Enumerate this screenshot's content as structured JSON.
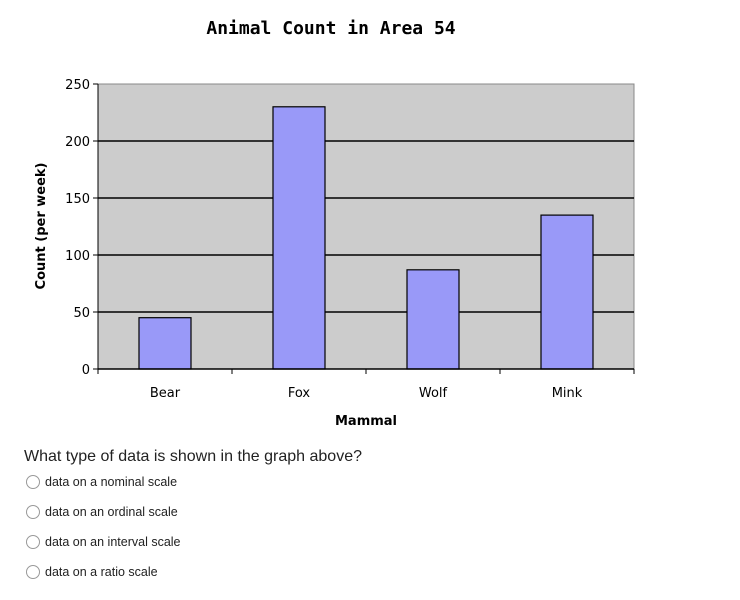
{
  "chart_data": {
    "type": "bar",
    "title": "Animal Count in Area 54",
    "xlabel": "Mammal",
    "ylabel": "Count (per week)",
    "categories": [
      "Bear",
      "Fox",
      "Wolf",
      "Mink"
    ],
    "values": [
      45,
      230,
      87,
      135
    ],
    "ylim": [
      0,
      250
    ],
    "yticks": [
      0,
      50,
      100,
      150,
      200,
      250
    ],
    "grid": true,
    "colors": {
      "bar": "#9999f8",
      "plot_bg": "#cccccc"
    }
  },
  "question": {
    "text": "What type of data is shown in the graph above?",
    "options": [
      "data on a nominal scale",
      "data on an ordinal scale",
      "data on an interval scale",
      "data on a ratio scale"
    ]
  }
}
